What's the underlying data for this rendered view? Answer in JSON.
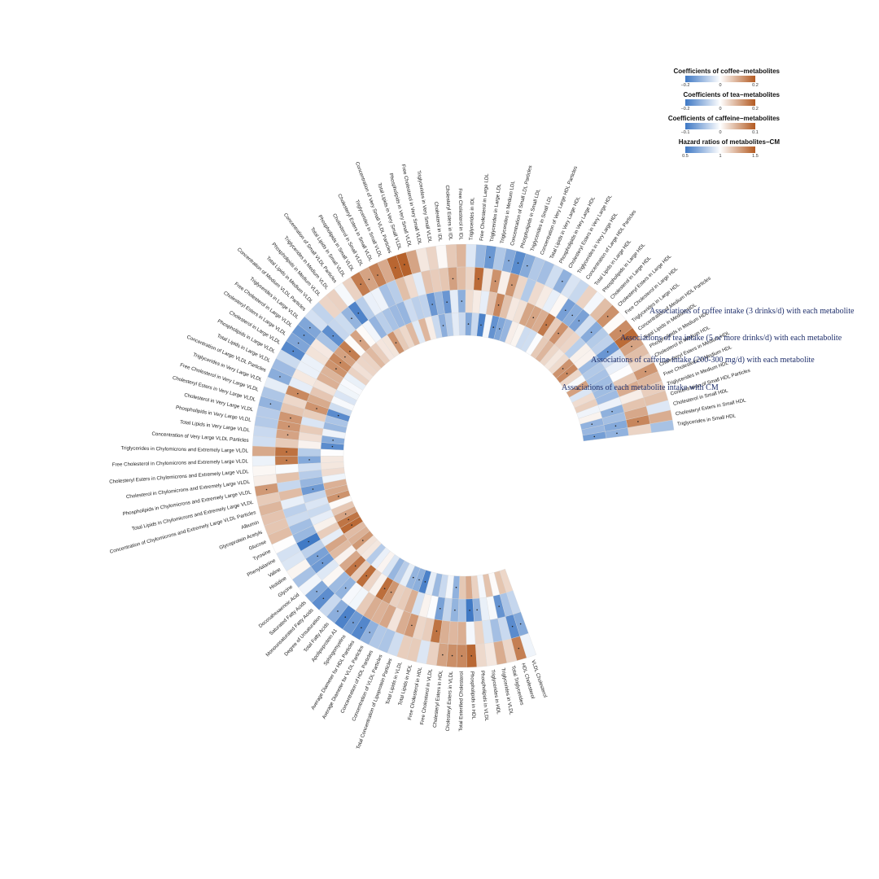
{
  "chart_data": {
    "type": "heatmap",
    "layout": "circular",
    "color_low": "#3d77c4",
    "color_mid": "#ffffff",
    "color_high": "#b35a21",
    "legends": [
      {
        "title": "Coefficients of coffee−metabolites",
        "min_label": "−0.2",
        "mid_label": "0",
        "max_label": "0.2",
        "min": -0.2,
        "max": 0.2
      },
      {
        "title": "Coefficients of tea−metabolites",
        "min_label": "−0.2",
        "mid_label": "0",
        "max_label": "0.2",
        "min": -0.2,
        "max": 0.2
      },
      {
        "title": "Coefficients of caffeine−metabolites",
        "min_label": "−0.1",
        "mid_label": "0",
        "max_label": "0.1",
        "min": -0.1,
        "max": 0.1
      },
      {
        "title": "Hazard ratios of metabolites−CM",
        "min_label": "0.5",
        "mid_label": "1",
        "max_label": "1.5",
        "min": 0.5,
        "max": 1.5
      }
    ],
    "rings": [
      "Associations of coffee intake (3 drinks/d) with each metabolite",
      "Associations of tea intake (5 or more drinks/d) with each metabolite",
      "Associations of caffeine intake (200-300 mg/d) with each metabolite",
      "Associations of each metabolite intake with CM"
    ],
    "metabolites": [
      "Triglycerides in Small HDL",
      "Cholesteryl Esters in Small HDL",
      "Cholesterol in Small HDL",
      "Concentration of Small HDL Particles",
      "Triglycerides in Medium HDL",
      "Free Cholesterol in Medium HDL",
      "Cholesteryl Esters in Medium HDL",
      "Cholesterol in Medium HDL",
      "Phospholipids in Medium HDL",
      "Total Lipids in Medium HDL",
      "Concentration of Medium HDL Particles",
      "Triglycerides in Large HDL",
      "Free Cholesterol in Large HDL",
      "Cholesteryl Esters in Large HDL",
      "Cholesterol in Large HDL",
      "Phospholipids in Large HDL",
      "Total Lipids in Large HDL",
      "Concentration of Large HDL Particles",
      "Triglycerides in Very Large HDL",
      "Cholesteryl Esters in Very Large HDL",
      "Phospholipids in Very Large HDL",
      "Total Lipids in Very Large HDL",
      "Concentration of Very Large HDL Particles",
      "Triglycerides in Small LDL",
      "Phospholipids in Small LDL",
      "Concentration of Small LDL Particles",
      "Triglycerides in Medium LDL",
      "Triglycerides in Large LDL",
      "Free Cholesterol in Large LDL",
      "Triglycerides in IDL",
      "Free Cholesterol in IDL",
      "Cholesteryl Esters in IDL",
      "Cholesterol in IDL",
      "Triglycerides in Very Small VLDL",
      "Free Cholesterol in Very Small VLDL",
      "Phospholipids in Very Small VLDL",
      "Total Lipids in Very Small VLDL",
      "Concentration of Very Small VLDL Particles",
      "Triglycerides in Small VLDL",
      "Cholesteryl Esters in Small VLDL",
      "Cholesterol in Small VLDL",
      "Phospholipids in Small VLDL",
      "Total Lipids in Small VLDL",
      "Concentration of Small VLDL Particles",
      "Triglycerides in Medium VLDL",
      "Phospholipids in Medium VLDL",
      "Total Lipids in Medium VLDL",
      "Concentration of Medium VLDL Particles",
      "Triglycerides in Large VLDL",
      "Free Cholesterol in Large VLDL",
      "Cholesteryl Esters in Large VLDL",
      "Cholesterol in Large VLDL",
      "Phospholipids in Large VLDL",
      "Total Lipids in Large VLDL",
      "Concentration of Large VLDL Particles",
      "Triglycerides in Very Large VLDL",
      "Free Cholesterol in Very Large VLDL",
      "Cholesteryl Esters in Very Large VLDL",
      "Cholesterol in Very Large VLDL",
      "Phospholipids in Very Large VLDL",
      "Total Lipids in Very Large VLDL",
      "Concentration of Very Large VLDL Particles",
      "Triglycerides in Chylomicrons and Extremely Large VLDL",
      "Free Cholesterol in Chylomicrons and Extremely Large VLDL",
      "Cholesteryl Esters in Chylomicrons and Extremely Large VLDL",
      "Cholesterol in Chylomicrons and Extremely Large VLDL",
      "Phospholipids in Chylomicrons and Extremely Large VLDL",
      "Total Lipids in Chylomicrons and Extremely Large VLDL",
      "Concentration of Chylomicrons and Extremely Large VLDL Particles",
      "Albumin",
      "Glycoprotein Acetyls",
      "Glucose",
      "Tyrosine",
      "Phenylalanine",
      "Valine",
      "Histidine",
      "Glycine",
      "Docosahexaenoic Acid",
      "Saturated Fatty Acids",
      "Monounsaturated Fatty Acids",
      "Degree of Unsaturation",
      "Total Fatty Acids",
      "Apolipoprotein A1",
      "Sphingomyelins",
      "Average Diameter for HDL Particles",
      "Average Diameter for VLDL Particles",
      "Concentration of HDL Particles",
      "Concentration of VLDL Particles",
      "Total Concentration of Lipoprotein Particles",
      "Total Lipids in VLDL",
      "Total Lipids in HDL",
      "Free Cholesterol in HDL",
      "Free Cholesterol in VLDL",
      "Cholesteryl Esters in HDL",
      "Cholesteryl Esters in VLDL",
      "Total Esterified Cholesterol",
      "Phospholipids in HDL",
      "Phospholipids in VLDL",
      "Triglycerides in HDL",
      "Triglycerides in VLDL",
      "Total Triglycerides",
      "HDL Cholesterol",
      "VLDL Cholesterol"
    ]
  }
}
